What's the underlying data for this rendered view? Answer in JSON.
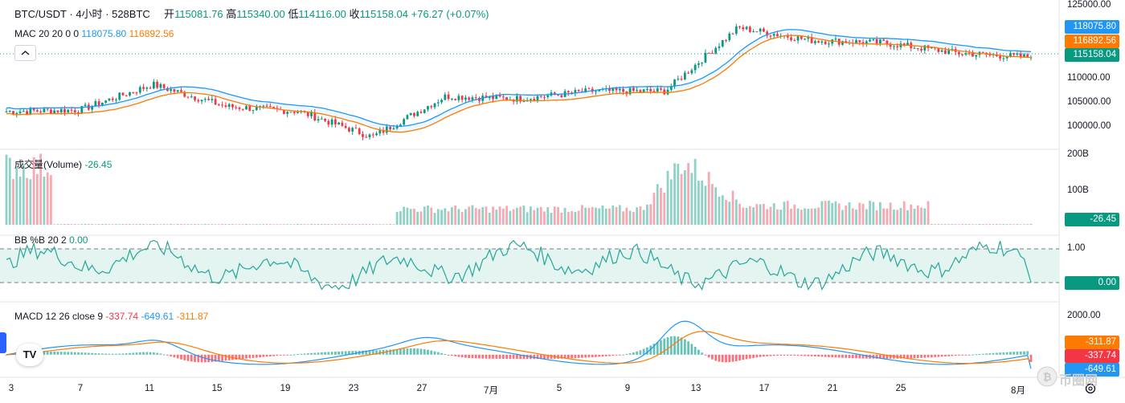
{
  "header": {
    "symbol": "BTC/USDT · 4小时 · 528BTC",
    "open_label": "开",
    "open": "115081.76",
    "high_label": "高",
    "high": "115340.00",
    "low_label": "低",
    "low": "114116.00",
    "close_label": "收",
    "close": "115158.04",
    "change": "+76.27 (+0.07%)"
  },
  "indicators": {
    "mac": {
      "label": "MAC 20 20 0 0",
      "upper": "118075.80",
      "lower": "116892.56"
    },
    "volume": {
      "label": "成交量(Volume)",
      "value": "-26.45"
    },
    "bb": {
      "label": "BB %B 20 2",
      "value": "0.00"
    },
    "macd": {
      "label": "MACD 12 26 close 9",
      "hist": "-337.74",
      "macd": "-649.61",
      "signal": "-311.87"
    }
  },
  "price_axis": {
    "ticks": [
      "125000.00",
      "110000.00",
      "105000.00",
      "100000.00"
    ],
    "badge_upper": "118075.80",
    "badge_lower": "116892.56",
    "badge_last": "115158.04"
  },
  "volume_axis": {
    "ticks": [
      "200B",
      "100B"
    ],
    "badge": "-26.45"
  },
  "bb_axis": {
    "ticks": [
      "1.00"
    ],
    "badge": "0.00"
  },
  "macd_axis": {
    "ticks": [
      "2000.00"
    ],
    "badge_signal": "-311.87",
    "badge_hist": "-337.74",
    "badge_macd": "-649.61"
  },
  "time_axis": {
    "ticks": [
      "3",
      "7",
      "11",
      "15",
      "19",
      "23",
      "27",
      "7月",
      "5",
      "9",
      "13",
      "17",
      "21",
      "25",
      "8月"
    ]
  },
  "branding": {
    "logo": "TV",
    "watermark": "币圈网"
  },
  "colors": {
    "up": "#089981",
    "down": "#f23645",
    "mac_upper": "#2196f3",
    "mac_lower": "#ff7a00",
    "bb_line": "#26a69a"
  },
  "chart_data": [
    {
      "type": "candlestick",
      "title": "BTC/USDT · 4小时",
      "x": [
        "6/3",
        "6/7",
        "6/11",
        "6/15",
        "6/19",
        "6/23",
        "6/27",
        "7/1",
        "7/5",
        "7/9",
        "7/13",
        "7/17",
        "7/21",
        "7/25",
        "8/1"
      ],
      "approx_close": [
        104500,
        104800,
        109800,
        105500,
        104500,
        99500,
        107500,
        107000,
        108500,
        108500,
        121000,
        118500,
        118000,
        116000,
        115158
      ],
      "ylim": [
        98000,
        125500
      ],
      "last": {
        "open": 115081.76,
        "high": 115340.0,
        "low": 114116.0,
        "close": 115158.04
      },
      "overlays": [
        {
          "name": "MAC upper",
          "last": 118075.8
        },
        {
          "name": "MAC lower",
          "last": 116892.56
        }
      ]
    },
    {
      "type": "bar",
      "title": "成交量(Volume)",
      "ylim": [
        0,
        200
      ],
      "unit": "B",
      "approx_levels": {
        "early_june": 165,
        "mid_june": 2,
        "late_june_mid_july": 45,
        "mid_july_peak": 180,
        "late_july": 55,
        "august": 2
      },
      "last": -26.45
    },
    {
      "type": "line",
      "title": "BB %B 20 2",
      "bands": [
        0,
        1
      ],
      "last": 0.0
    },
    {
      "type": "line",
      "title": "MACD 12 26 close 9",
      "ylim": [
        -900,
        2300
      ],
      "peak": 2000,
      "last": {
        "hist": -337.74,
        "macd": -649.61,
        "signal": -311.87
      }
    }
  ]
}
